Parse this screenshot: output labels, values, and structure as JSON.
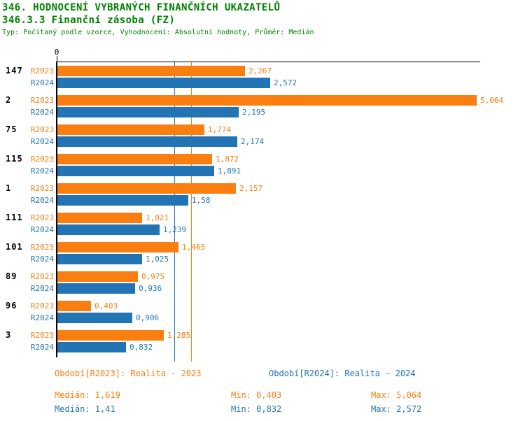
{
  "header": {
    "title": "346. HODNOCENÍ VYBRANÝCH FINANČNÍCH UKAZATELŮ",
    "subtitle": "346.3.3 Finanční zásoba (FZ)",
    "meta": "Typ: Počítaný podle vzorce, Vyhodnocení: Absolutní hodnoty, Průměr: Medián"
  },
  "colors": {
    "title_green": "#008000",
    "series_2023_orange": "#FB7E10",
    "series_2024_blue": "#2274B5",
    "axis_black": "#000000",
    "background": "#FFFFFF"
  },
  "chart_data": {
    "type": "bar",
    "orientation": "horizontal",
    "title": "346.3.3 Finanční zásoba (FZ)",
    "categories": [
      "147",
      "2",
      "75",
      "115",
      "1",
      "111",
      "101",
      "89",
      "96",
      "3"
    ],
    "axis": {
      "zero_tick_label": "0",
      "xlim": [
        0,
        5.15
      ],
      "grid": false
    },
    "legend_position": "bottom",
    "series": [
      {
        "name": "R2023",
        "color": "#FB7E10",
        "values": [
          2.267,
          5.064,
          1.774,
          1.872,
          2.157,
          1.021,
          1.463,
          0.975,
          0.403,
          1.285
        ],
        "value_labels": [
          "2,267",
          "5,064",
          "1,774",
          "1,872",
          "2,157",
          "1,021",
          "1,463",
          "0,975",
          "0,403",
          "1,285"
        ],
        "median": 1.619,
        "median_label": "1,619"
      },
      {
        "name": "R2024",
        "color": "#2274B5",
        "values": [
          2.572,
          2.195,
          2.174,
          1.891,
          1.58,
          1.239,
          1.025,
          0.936,
          0.906,
          0.832
        ],
        "value_labels": [
          "2,572",
          "2,195",
          "2,174",
          "1,891",
          "1,58",
          "1,239",
          "1,025",
          "0,936",
          "0,906",
          "0,832"
        ],
        "median": 1.41,
        "median_label": "1,41"
      }
    ]
  },
  "legend": {
    "r2023": "Období[R2023]: Realita - 2023",
    "r2024": "Období[R2024]: Realita - 2024"
  },
  "stats": {
    "r2023": {
      "median": "Medián: 1,619",
      "min": "Min: 0,403",
      "max": "Max: 5,064"
    },
    "r2024": {
      "median": "Medián: 1,41",
      "min": "Min: 0,832",
      "max": "Max: 2,572"
    }
  }
}
